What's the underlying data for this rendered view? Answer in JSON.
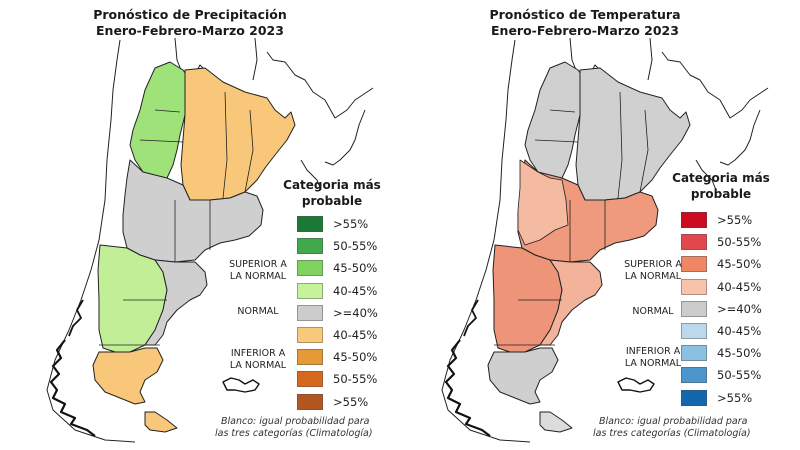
{
  "panels": [
    {
      "id": "precipitation",
      "title_line1": "Pronóstico de Precipitación",
      "title_line2": "Enero-Febrero-Marzo 2023",
      "legend_title_line1": "Categoria más",
      "legend_title_line2": "probable",
      "categories": [
        {
          "label": "SUPERIOR A",
          "label2": "LA NORMAL"
        },
        {
          "label": "NORMAL"
        },
        {
          "label": "INFERIOR A",
          "label2": "LA NORMAL"
        }
      ],
      "legend": [
        {
          "range": ">55%",
          "color": "#1a7a35",
          "group": "superior"
        },
        {
          "range": "50-55%",
          "color": "#41a84b",
          "group": "superior"
        },
        {
          "range": "45-50%",
          "color": "#7fd35e",
          "group": "superior"
        },
        {
          "range": "40-45%",
          "color": "#c6f29a",
          "group": "superior"
        },
        {
          "range": ">=40%",
          "color": "#cccccc",
          "group": "normal"
        },
        {
          "range": "40-45%",
          "color": "#f9c97b",
          "group": "inferior"
        },
        {
          "range": "45-50%",
          "color": "#e59a35",
          "group": "inferior"
        },
        {
          "range": "50-55%",
          "color": "#d7691e",
          "group": "inferior"
        },
        {
          "range": ">55%",
          "color": "#b3561f",
          "group": "inferior"
        }
      ],
      "note_line1": "Blanco: igual probabilidad para",
      "note_line2": "las tres categorías (Climatología)",
      "region_colors": {
        "northwest": "#9fe27a",
        "northeast": "#f8c77a",
        "center": "#cfcfcf",
        "patagonia_north": "#c3ee98",
        "patagonia_east": "#cfcfcf",
        "south": "#f8c77a",
        "tierra_del_fuego": "#f8c77a"
      }
    },
    {
      "id": "temperature",
      "title_line1": "Pronóstico de Temperatura",
      "title_line2": "Enero-Febrero-Marzo 2023",
      "legend_title_line1": "Categoria más",
      "legend_title_line2": "probable",
      "categories": [
        {
          "label": "SUPERIOR A",
          "label2": "LA NORMAL"
        },
        {
          "label": "NORMAL"
        },
        {
          "label": "INFERIOR A",
          "label2": "LA NORMAL"
        }
      ],
      "legend": [
        {
          "range": ">55%",
          "color": "#cc0a22",
          "group": "superior"
        },
        {
          "range": "50-55%",
          "color": "#e2474e",
          "group": "superior"
        },
        {
          "range": "45-50%",
          "color": "#ef8664",
          "group": "superior"
        },
        {
          "range": "40-45%",
          "color": "#f7c4ab",
          "group": "superior"
        },
        {
          "range": ">=40%",
          "color": "#cccccc",
          "group": "normal"
        },
        {
          "range": "40-45%",
          "color": "#bcd9eb",
          "group": "inferior"
        },
        {
          "range": "45-50%",
          "color": "#8bc0e0",
          "group": "inferior"
        },
        {
          "range": "50-55%",
          "color": "#4a95cc",
          "group": "inferior"
        },
        {
          "range": ">55%",
          "color": "#1467ad",
          "group": "inferior"
        }
      ],
      "note_line1": "Blanco: igual probabilidad para",
      "note_line2": "las tres categorías (Climatología)",
      "region_colors": {
        "northwest": "#d0d0d0",
        "northeast": "#d0d0d0",
        "center": "#ef9a7c",
        "center_west": "#f4bba2",
        "patagonia_north": "#ee9478",
        "patagonia_east": "#f3b39a",
        "south": "#cfcfcf",
        "tierra_del_fuego": "#dcdcdc"
      }
    }
  ]
}
